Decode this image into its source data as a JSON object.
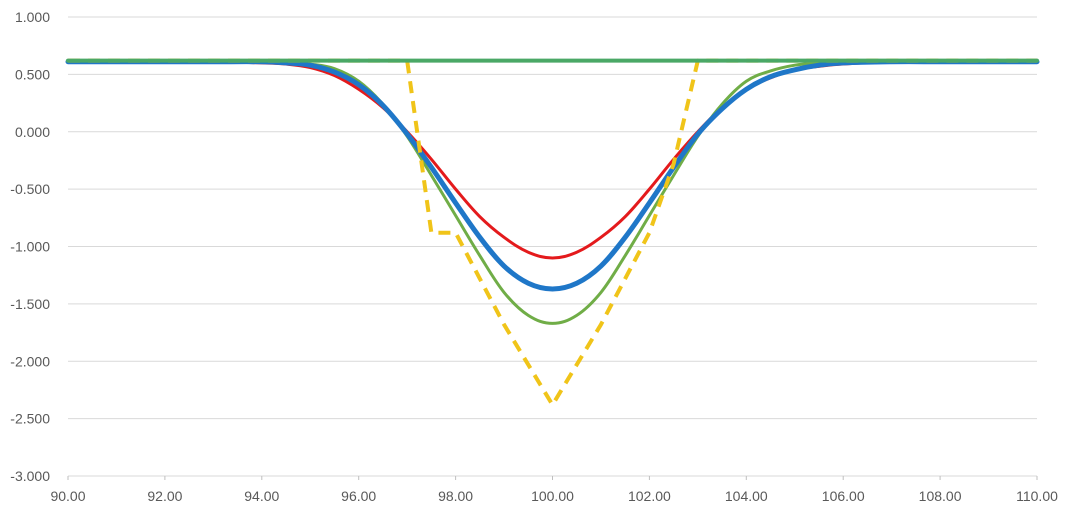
{
  "chart_data": {
    "type": "line",
    "title": "",
    "xlabel": "",
    "ylabel": "",
    "xlim": [
      90,
      110
    ],
    "ylim": [
      -3,
      1
    ],
    "x_ticks": [
      90,
      92,
      94,
      96,
      98,
      100,
      102,
      104,
      106,
      108,
      110
    ],
    "x_tick_labels": [
      "90.00",
      "92.00",
      "94.00",
      "96.00",
      "98.00",
      "100.00",
      "102.00",
      "104.00",
      "106.00",
      "108.00",
      "110.00"
    ],
    "y_ticks": [
      1,
      0.5,
      0,
      -0.5,
      -1,
      -1.5,
      -2,
      -2.5,
      -3
    ],
    "y_tick_labels": [
      "1.000",
      "0.500",
      "0.000",
      "-0.500",
      "-1.000",
      "-1.500",
      "-2.000",
      "-2.500",
      "-3.000"
    ],
    "grid": true,
    "legend": "none",
    "x": [
      90,
      91,
      92,
      93,
      94,
      94.5,
      95,
      95.5,
      96,
      96.5,
      97,
      97.5,
      98,
      98.5,
      99,
      99.5,
      100,
      100.5,
      101,
      101.5,
      102,
      102.5,
      103,
      103.5,
      104,
      104.5,
      105,
      105.5,
      106,
      107,
      108,
      109,
      110
    ],
    "series": [
      {
        "color": "#e41a1c",
        "style": "solid",
        "width": 3,
        "values": [
          0.61,
          0.61,
          0.61,
          0.61,
          0.6,
          0.59,
          0.56,
          0.49,
          0.37,
          0.21,
          0.0,
          -0.24,
          -0.5,
          -0.74,
          -0.92,
          -1.05,
          -1.1,
          -1.05,
          -0.92,
          -0.74,
          -0.5,
          -0.24,
          0.0,
          0.21,
          0.37,
          0.47,
          0.54,
          0.57,
          0.59,
          0.61,
          0.61,
          0.61,
          0.61
        ]
      },
      {
        "color": "#70ad47",
        "style": "solid",
        "width": 3,
        "values": [
          0.62,
          0.62,
          0.62,
          0.62,
          0.62,
          0.61,
          0.59,
          0.55,
          0.44,
          0.24,
          -0.04,
          -0.38,
          -0.73,
          -1.08,
          -1.4,
          -1.6,
          -1.67,
          -1.6,
          -1.4,
          -1.08,
          -0.73,
          -0.38,
          -0.04,
          0.24,
          0.44,
          0.53,
          0.58,
          0.6,
          0.61,
          0.62,
          0.62,
          0.62,
          0.62
        ]
      },
      {
        "color": "#1f77c8",
        "style": "solid",
        "width": 5,
        "values": [
          0.61,
          0.61,
          0.61,
          0.61,
          0.61,
          0.6,
          0.58,
          0.52,
          0.41,
          0.23,
          -0.02,
          -0.31,
          -0.62,
          -0.92,
          -1.17,
          -1.32,
          -1.37,
          -1.32,
          -1.17,
          -0.92,
          -0.62,
          -0.31,
          -0.02,
          0.2,
          0.37,
          0.48,
          0.54,
          0.58,
          0.6,
          0.61,
          0.61,
          0.61,
          0.61
        ]
      },
      {
        "color": "#f0c419",
        "style": "dashed",
        "width": 4,
        "values": [
          0.62,
          0.62,
          0.62,
          0.62,
          0.62,
          0.62,
          0.62,
          0.62,
          0.62,
          0.62,
          0.62,
          -0.88,
          -0.88,
          -1.28,
          -1.68,
          -2.03,
          -2.38,
          -2.03,
          -1.68,
          -1.28,
          -0.88,
          -0.28,
          0.62,
          0.62,
          0.62,
          0.62,
          0.62,
          0.62,
          0.62,
          0.62,
          0.62,
          0.62,
          0.62
        ]
      },
      {
        "color": "#4aa866",
        "style": "solid",
        "width": 4,
        "values": [
          0.62,
          0.62,
          0.62,
          0.62,
          0.62,
          0.62,
          0.62,
          0.62,
          0.62,
          0.62,
          0.62,
          0.62,
          0.62,
          0.62,
          0.62,
          0.62,
          0.62,
          0.62,
          0.62,
          0.62,
          0.62,
          0.62,
          0.62,
          0.62,
          0.62,
          0.62,
          0.62,
          0.62,
          0.62,
          0.62,
          0.62,
          0.62,
          0.62
        ]
      }
    ]
  }
}
